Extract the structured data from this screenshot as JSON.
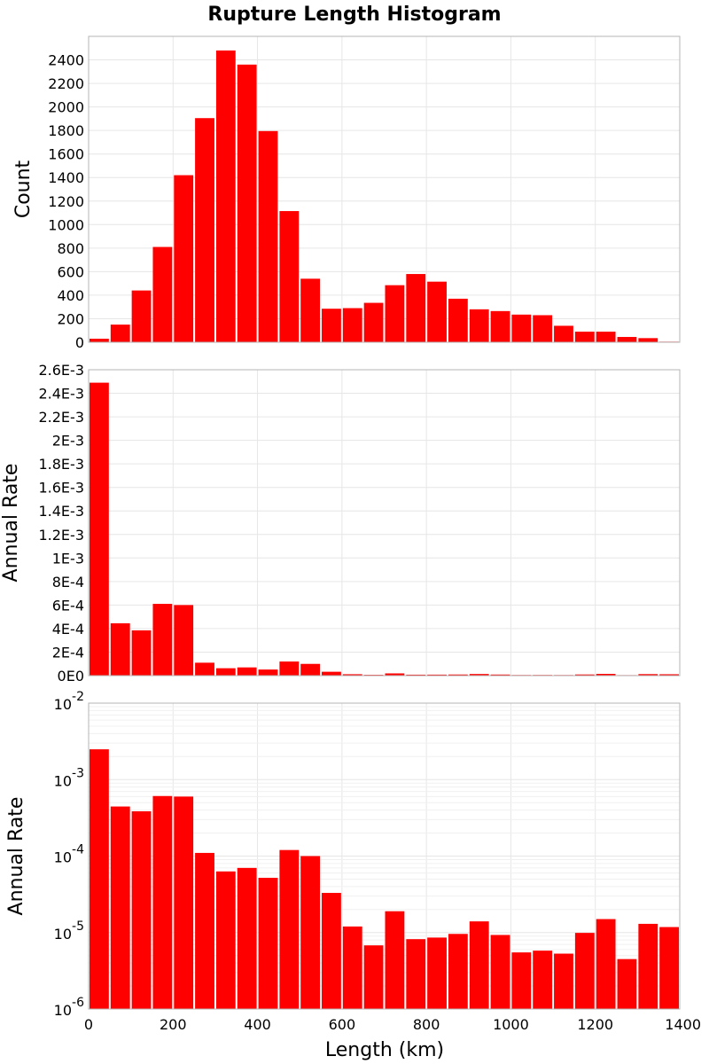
{
  "chart_data": {
    "type": "bar",
    "title": "Rupture Length Histogram",
    "xlabel": "Length (km)",
    "xlim": [
      0,
      1400
    ],
    "x_ticks": [
      "0",
      "200",
      "400",
      "600",
      "800",
      "1000",
      "1200",
      "1400"
    ],
    "bin_width_km": 50,
    "panels": [
      {
        "name": "count",
        "ylabel": "Count",
        "yscale": "linear",
        "ylim": [
          0,
          2600
        ],
        "y_ticks": [
          "0",
          "200",
          "400",
          "600",
          "800",
          "1000",
          "1200",
          "1400",
          "1600",
          "1800",
          "2000",
          "2200",
          "2400"
        ],
        "y_tick_values": [
          0,
          200,
          400,
          600,
          800,
          1000,
          1200,
          1400,
          1600,
          1800,
          2000,
          2200,
          2400
        ],
        "bins": [
          0,
          50,
          100,
          150,
          200,
          250,
          300,
          350,
          400,
          450,
          500,
          550,
          600,
          650,
          700,
          750,
          800,
          850,
          900,
          950,
          1000,
          1050,
          1100,
          1150,
          1200,
          1250,
          1300,
          1350
        ],
        "values": [
          30,
          150,
          440,
          810,
          1420,
          1905,
          2480,
          2360,
          1795,
          1115,
          540,
          285,
          290,
          335,
          485,
          580,
          515,
          370,
          280,
          265,
          235,
          230,
          140,
          90,
          90,
          45,
          35,
          5
        ]
      },
      {
        "name": "rate-linear",
        "ylabel": "Annual Rate",
        "yscale": "linear",
        "ylim": [
          0,
          0.0026
        ],
        "y_ticks": [
          "0E0",
          "2E-4",
          "4E-4",
          "6E-4",
          "8E-4",
          "1E-3",
          "1.2E-3",
          "1.4E-3",
          "1.6E-3",
          "1.8E-3",
          "2E-3",
          "2.2E-3",
          "2.4E-3",
          "2.6E-3"
        ],
        "y_tick_values": [
          0,
          0.0002,
          0.0004,
          0.0006,
          0.0008,
          0.001,
          0.0012,
          0.0014,
          0.0016,
          0.0018,
          0.002,
          0.0022,
          0.0024,
          0.0026
        ],
        "bins": [
          0,
          50,
          100,
          150,
          200,
          250,
          300,
          350,
          400,
          450,
          500,
          550,
          600,
          650,
          700,
          750,
          800,
          850,
          900,
          950,
          1000,
          1050,
          1100,
          1150,
          1200,
          1250,
          1300,
          1350
        ],
        "values": [
          0.00249,
          0.000445,
          0.000385,
          0.00061,
          0.0006,
          0.00011,
          6.3e-05,
          7e-05,
          5.2e-05,
          0.00012,
          0.0001,
          3.3e-05,
          1.2e-05,
          6.8e-06,
          1.9e-05,
          8.2e-06,
          8.6e-06,
          9.6e-06,
          1.4e-05,
          9.3e-06,
          5.5e-06,
          5.8e-06,
          5.3e-06,
          9.9e-06,
          1.5e-05,
          4.5e-06,
          1.3e-05,
          1.18e-05
        ]
      },
      {
        "name": "rate-log",
        "ylabel": "Annual Rate",
        "yscale": "log",
        "ylim": [
          1e-06,
          0.01
        ],
        "y_tick_exponents": [
          "-6",
          "-5",
          "-4",
          "-3",
          "-2"
        ],
        "y_tick_base": "10",
        "bins": [
          0,
          50,
          100,
          150,
          200,
          250,
          300,
          350,
          400,
          450,
          500,
          550,
          600,
          650,
          700,
          750,
          800,
          850,
          900,
          950,
          1000,
          1050,
          1100,
          1150,
          1200,
          1250,
          1300,
          1350
        ],
        "values": [
          0.00249,
          0.000445,
          0.000385,
          0.00061,
          0.0006,
          0.00011,
          6.3e-05,
          7e-05,
          5.2e-05,
          0.00012,
          0.0001,
          3.3e-05,
          1.2e-05,
          6.8e-06,
          1.9e-05,
          8.2e-06,
          8.6e-06,
          9.6e-06,
          1.4e-05,
          9.3e-06,
          5.5e-06,
          5.8e-06,
          5.3e-06,
          9.9e-06,
          1.5e-05,
          4.5e-06,
          1.3e-05,
          1.18e-05
        ]
      }
    ],
    "bar_color": "#ff0000",
    "grid": true,
    "legend": "none"
  }
}
